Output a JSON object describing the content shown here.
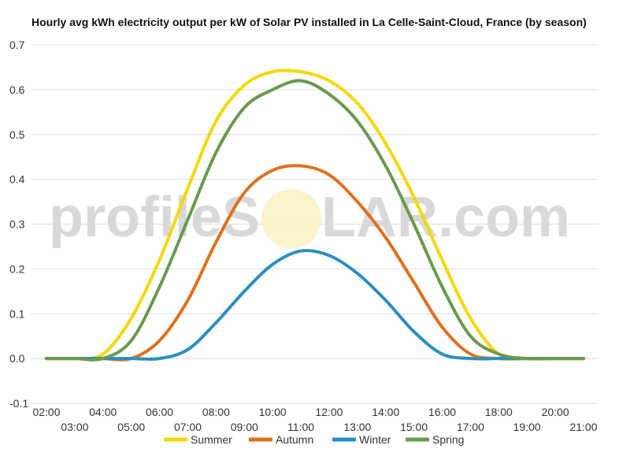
{
  "colors": {
    "summer": "#f5d800",
    "autumn": "#e0701c",
    "winter": "#2a8fbf",
    "spring": "#6a9a4e",
    "grid": "#dddddd",
    "watermark": "#d9d9d9"
  },
  "watermark": {
    "left_text": "profileS",
    "right_text": "LAR.com"
  },
  "chart_data": {
    "type": "line",
    "title": "Hourly avg kWh electricity output per kW of Solar PV installed in La Celle-Saint-Cloud, France (by season)",
    "xlabel": "",
    "ylabel": "",
    "ylim": [
      -0.1,
      0.7
    ],
    "yticks": [
      "-0.1",
      "0.0",
      "0.1",
      "0.2",
      "0.3",
      "0.4",
      "0.5",
      "0.6",
      "0.7"
    ],
    "categories": [
      "02:00",
      "03:00",
      "04:00",
      "05:00",
      "06:00",
      "07:00",
      "08:00",
      "09:00",
      "10:00",
      "11:00",
      "12:00",
      "13:00",
      "14:00",
      "15:00",
      "16:00",
      "17:00",
      "18:00",
      "19:00",
      "20:00",
      "21:00"
    ],
    "grid": true,
    "legend_position": "bottom",
    "series": [
      {
        "name": "Summer",
        "color": "#f5d800",
        "values": [
          0.0,
          0.0,
          0.01,
          0.09,
          0.22,
          0.38,
          0.53,
          0.61,
          0.64,
          0.64,
          0.62,
          0.57,
          0.48,
          0.36,
          0.22,
          0.09,
          0.01,
          0.0,
          0.0,
          0.0
        ]
      },
      {
        "name": "Autumn",
        "color": "#e0701c",
        "values": [
          0.0,
          0.0,
          0.0,
          0.0,
          0.04,
          0.13,
          0.26,
          0.37,
          0.42,
          0.43,
          0.41,
          0.35,
          0.27,
          0.17,
          0.07,
          0.01,
          0.0,
          0.0,
          0.0,
          0.0
        ]
      },
      {
        "name": "Winter",
        "color": "#2a8fbf",
        "values": [
          0.0,
          0.0,
          0.0,
          0.0,
          0.0,
          0.02,
          0.08,
          0.15,
          0.21,
          0.24,
          0.23,
          0.19,
          0.13,
          0.06,
          0.01,
          0.0,
          0.0,
          0.0,
          0.0,
          0.0
        ]
      },
      {
        "name": "Spring",
        "color": "#6a9a4e",
        "values": [
          0.0,
          0.0,
          0.0,
          0.04,
          0.16,
          0.31,
          0.46,
          0.56,
          0.6,
          0.62,
          0.59,
          0.53,
          0.43,
          0.3,
          0.16,
          0.05,
          0.01,
          0.0,
          0.0,
          0.0
        ]
      }
    ]
  }
}
